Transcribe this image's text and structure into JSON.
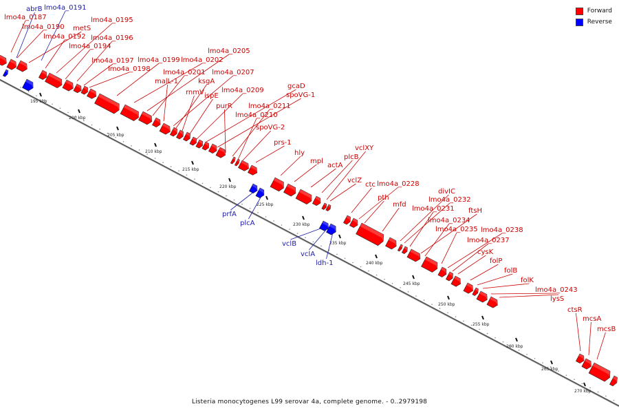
{
  "legend": {
    "forward_label": "Forward",
    "reverse_label": "Reverse",
    "forward_color": "#ff0000",
    "reverse_color": "#0000ff"
  },
  "caption": "Listeria monocytogenes L99 serovar 4a, complete genome. - 0..2979198",
  "axis": {
    "unit": "kbp",
    "ticks": [
      195,
      200,
      205,
      210,
      215,
      220,
      225,
      230,
      235,
      240,
      245,
      250,
      255,
      260,
      265,
      270
    ]
  },
  "forward_genes": [
    "lmo4a_0187",
    "lmo4a_0190",
    "metS",
    "lmo4a_0192",
    "lmo4a_0195",
    "lmo4a_0194",
    "lmo4a_0196",
    "lmo4a_0197",
    "lmo4a_0198",
    "lmo4a_0199",
    "lmo4a_0202",
    "lmo4a_0205",
    "lmo4a_0201",
    "malL-1",
    "lmo4a_0207",
    "ksgA",
    "rnmV",
    "ispE",
    "lmo4a_0209",
    "gcaD",
    "spoVG-1",
    "purR",
    "lmo4a_0211",
    "lmo4a_0210",
    "spoVG-2",
    "prs-1",
    "hly",
    "mpl",
    "actA",
    "plcB",
    "vclXY",
    "vclZ",
    "ctc",
    "lmo4a_0228",
    "pth",
    "mfd",
    "divIC",
    "lmo4a_0232",
    "lmo4a_0231",
    "ftsH",
    "lmo4a_0234",
    "lmo4a_0235",
    "lmo4a_0238",
    "lmo4a_0237",
    "cysK",
    "folP",
    "folB",
    "folK",
    "lmo4a_0243",
    "lysS",
    "ctsR",
    "mcsA",
    "mcsB"
  ],
  "reverse_genes": [
    "abrB",
    "lmo4a_0191",
    "prfA",
    "plcA",
    "vclB",
    "vclA",
    "ldh-1"
  ]
}
